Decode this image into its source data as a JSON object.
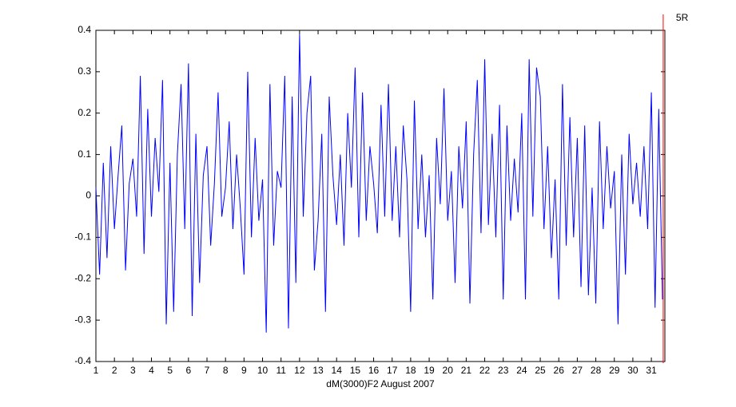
{
  "chart_data": {
    "type": "line",
    "xlabel": "dM(3000)F2 August 2007",
    "xlim": [
      1,
      31.73
    ],
    "ylim": [
      -0.4,
      0.4
    ],
    "xticks": [
      1,
      2,
      3,
      4,
      5,
      6,
      7,
      8,
      9,
      10,
      11,
      12,
      13,
      14,
      15,
      16,
      17,
      18,
      19,
      20,
      21,
      22,
      23,
      24,
      25,
      26,
      27,
      28,
      29,
      30,
      31
    ],
    "yticks": [
      -0.4,
      -0.3,
      -0.2,
      -0.1,
      0,
      0.1,
      0.2,
      0.3,
      0.4
    ],
    "x": [
      1,
      1.2,
      1.4,
      1.6,
      1.8,
      2,
      2.2,
      2.4,
      2.6,
      2.8,
      3,
      3.2,
      3.4,
      3.6,
      3.8,
      4,
      4.2,
      4.4,
      4.6,
      4.8,
      5,
      5.2,
      5.4,
      5.6,
      5.8,
      6,
      6.2,
      6.4,
      6.6,
      6.8,
      7,
      7.2,
      7.4,
      7.6,
      7.8,
      8,
      8.2,
      8.4,
      8.6,
      8.8,
      9,
      9.2,
      9.4,
      9.6,
      9.8,
      10,
      10.2,
      10.4,
      10.6,
      10.8,
      11,
      11.2,
      11.4,
      11.6,
      11.8,
      12,
      12.2,
      12.4,
      12.6,
      12.8,
      13,
      13.2,
      13.4,
      13.6,
      13.8,
      14,
      14.2,
      14.4,
      14.6,
      14.8,
      15,
      15.2,
      15.4,
      15.6,
      15.8,
      16,
      16.2,
      16.4,
      16.6,
      16.8,
      17,
      17.2,
      17.4,
      17.6,
      17.8,
      18,
      18.2,
      18.4,
      18.6,
      18.8,
      19,
      19.2,
      19.4,
      19.6,
      19.8,
      20,
      20.2,
      20.4,
      20.6,
      20.8,
      21,
      21.2,
      21.4,
      21.6,
      21.8,
      22,
      22.2,
      22.4,
      22.6,
      22.8,
      23,
      23.2,
      23.4,
      23.6,
      23.8,
      24,
      24.2,
      24.4,
      24.6,
      24.8,
      25,
      25.2,
      25.4,
      25.6,
      25.8,
      26,
      26.2,
      26.4,
      26.6,
      26.8,
      27,
      27.2,
      27.4,
      27.6,
      27.8,
      28,
      28.2,
      28.4,
      28.6,
      28.8,
      29,
      29.2,
      29.4,
      29.6,
      29.8,
      30,
      30.2,
      30.4,
      30.6,
      30.8,
      31,
      31.2,
      31.4,
      31.6
    ],
    "series": [
      {
        "color": "#0000ff",
        "values": [
          0.02,
          -0.19,
          0.08,
          -0.15,
          0.12,
          -0.08,
          0.05,
          0.17,
          -0.18,
          0.03,
          0.09,
          -0.05,
          0.29,
          -0.14,
          0.21,
          -0.05,
          0.14,
          0.01,
          0.28,
          -0.31,
          0.08,
          -0.28,
          0.1,
          0.27,
          -0.08,
          0.32,
          -0.29,
          0.15,
          -0.21,
          0.05,
          0.12,
          -0.12,
          0.03,
          0.25,
          -0.05,
          0.02,
          0.18,
          -0.08,
          0.1,
          -0.03,
          -0.19,
          0.3,
          -0.1,
          0.14,
          -0.06,
          0.04,
          -0.33,
          0.27,
          -0.12,
          0.06,
          0.02,
          0.29,
          -0.32,
          0.24,
          -0.21,
          0.39,
          -0.05,
          0.2,
          0.29,
          -0.18,
          -0.06,
          0.15,
          -0.28,
          0.24,
          0.05,
          -0.07,
          0.1,
          -0.12,
          0.2,
          0.02,
          0.31,
          -0.1,
          0.25,
          -0.06,
          0.12,
          0.03,
          -0.09,
          0.22,
          -0.05,
          0.27,
          -0.06,
          0.12,
          -0.1,
          0.17,
          0.04,
          -0.28,
          0.23,
          -0.08,
          0.1,
          -0.1,
          0.05,
          -0.25,
          0.14,
          -0.02,
          0.26,
          -0.06,
          0.06,
          -0.21,
          0.12,
          -0.03,
          0.18,
          -0.26,
          0.1,
          0.28,
          -0.09,
          0.33,
          -0.07,
          0.15,
          -0.1,
          0.22,
          -0.25,
          0.17,
          -0.06,
          0.09,
          -0.04,
          0.2,
          -0.25,
          0.33,
          -0.05,
          0.31,
          0.24,
          -0.08,
          0.12,
          -0.15,
          0.04,
          -0.25,
          0.27,
          -0.12,
          0.19,
          -0.1,
          0.14,
          -0.22,
          0.17,
          -0.24,
          0.02,
          -0.26,
          0.18,
          -0.08,
          0.12,
          -0.03,
          0.06,
          -0.31,
          0.1,
          -0.19,
          0.15,
          -0.02,
          0.08,
          -0.05,
          0.12,
          -0.08,
          0.25,
          -0.27,
          0.21,
          -0.25
        ]
      }
    ],
    "vline": {
      "x": 31.64,
      "label": "5R",
      "color": "#ff0000"
    }
  }
}
